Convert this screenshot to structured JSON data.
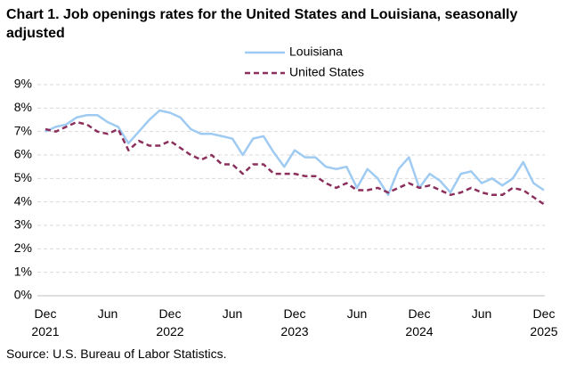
{
  "chart_data": {
    "type": "line",
    "title": "Chart 1. Job openings rates for the United States and Louisiana, seasonally adjusted",
    "source": "Source: U.S. Bureau of Labor Statistics.",
    "categories": [
      "Dec 2021",
      null,
      null,
      null,
      null,
      null,
      "Jun",
      null,
      null,
      null,
      null,
      null,
      "Dec 2022",
      null,
      null,
      null,
      null,
      null,
      "Jun",
      null,
      null,
      null,
      null,
      null,
      "Dec 2023",
      null,
      null,
      null,
      null,
      null,
      "Jun",
      null,
      null,
      null,
      null,
      null,
      "Dec 2024",
      null,
      null,
      null,
      null,
      null,
      "Jun",
      null,
      null,
      null,
      null,
      null,
      "Dec 2025"
    ],
    "series": [
      {
        "name": "Louisiana",
        "color": "#9fcbf2",
        "dashed": false,
        "values": [
          7.0,
          7.2,
          7.3,
          7.6,
          7.7,
          7.7,
          7.4,
          7.2,
          6.5,
          7.0,
          7.5,
          7.9,
          7.8,
          7.6,
          7.1,
          6.9,
          6.9,
          6.8,
          6.7,
          6.0,
          6.7,
          6.8,
          6.1,
          5.5,
          6.2,
          5.9,
          5.9,
          5.5,
          5.4,
          5.5,
          4.6,
          5.4,
          5.0,
          4.3,
          5.4,
          5.9,
          4.6,
          5.2,
          4.9,
          4.4,
          5.2,
          5.3,
          4.8,
          5.0,
          4.7,
          5.0,
          5.7,
          4.8,
          4.5
        ]
      },
      {
        "name": "United States",
        "color": "#8b2f5c",
        "dashed": true,
        "values": [
          7.1,
          7.0,
          7.2,
          7.4,
          7.3,
          7.0,
          6.9,
          7.1,
          6.2,
          6.6,
          6.4,
          6.4,
          6.6,
          6.3,
          6.0,
          5.8,
          6.0,
          5.6,
          5.6,
          5.2,
          5.6,
          5.6,
          5.2,
          5.2,
          5.2,
          5.1,
          5.1,
          4.8,
          4.6,
          4.8,
          4.5,
          4.5,
          4.6,
          4.4,
          4.6,
          4.8,
          4.6,
          4.7,
          4.5,
          4.3,
          4.4,
          4.6,
          4.4,
          4.3,
          4.3,
          4.6,
          4.5,
          4.2,
          3.9
        ]
      }
    ],
    "ylim": [
      0,
      9
    ],
    "yticks": [
      {
        "value": 0,
        "label": "0%"
      },
      {
        "value": 1,
        "label": "1%"
      },
      {
        "value": 2,
        "label": "2%"
      },
      {
        "value": 3,
        "label": "3%"
      },
      {
        "value": 4,
        "label": "4%"
      },
      {
        "value": 5,
        "label": "5%"
      },
      {
        "value": 6,
        "label": "6%"
      },
      {
        "value": 7,
        "label": "7%"
      },
      {
        "value": 8,
        "label": "8%"
      },
      {
        "value": 9,
        "label": "9%"
      }
    ],
    "grid": true
  }
}
